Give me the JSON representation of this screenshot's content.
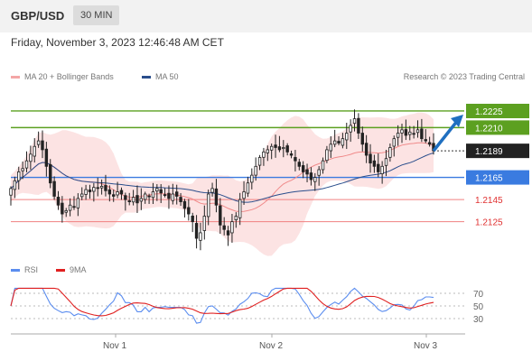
{
  "header": {
    "symbol": "GBP/USD",
    "timeframe": "30 MIN"
  },
  "timestamp": "Friday, November 3, 2023 12:46:48 AM CET",
  "legend_price": [
    {
      "label": "MA 20 + Bollinger Bands",
      "color": "#f4a6a6"
    },
    {
      "label": "MA 50",
      "color": "#2a4e8c"
    }
  ],
  "legend_rsi": [
    {
      "label": "RSI",
      "color": "#5b8def"
    },
    {
      "label": "9MA",
      "color": "#e02020"
    }
  ],
  "copyright": "Research © 2023 Trading Central",
  "colors": {
    "resistance": "#5ca020",
    "support": "#3a7be0",
    "target_line": "#f08080",
    "arrow": "#1f6fc0",
    "up_candle": "#ffffff",
    "down_candle": "#222222"
  },
  "chart_data": [
    {
      "type": "candlestick",
      "title": "GBP/USD",
      "ylim": [
        1.2097,
        1.2247
      ],
      "levels": [
        {
          "price": 1.2225,
          "label": "1.2225",
          "kind": "resistance"
        },
        {
          "price": 1.221,
          "label": "1.2210",
          "kind": "resistance"
        },
        {
          "price": 1.2189,
          "label": "1.2189",
          "kind": "current"
        },
        {
          "price": 1.2165,
          "label": "1.2165",
          "kind": "support"
        },
        {
          "price": 1.2145,
          "label": "1.2145",
          "kind": "target"
        },
        {
          "price": 1.2125,
          "label": "1.2125",
          "kind": "target"
        }
      ],
      "x_ticks": [
        "Nov 1",
        "Nov 2",
        "Nov 3"
      ],
      "close": [
        1.2155,
        1.2162,
        1.217,
        1.2173,
        1.218,
        1.2186,
        1.2193,
        1.2198,
        1.219,
        1.2175,
        1.216,
        1.2148,
        1.214,
        1.2132,
        1.2135,
        1.214,
        1.2138,
        1.2146,
        1.215,
        1.2154,
        1.2152,
        1.2156,
        1.2155,
        1.2157,
        1.2153,
        1.215,
        1.2148,
        1.2152,
        1.215,
        1.2145,
        1.2143,
        1.2147,
        1.2142,
        1.2146,
        1.215,
        1.2148,
        1.2152,
        1.2155,
        1.2151,
        1.2149,
        1.2146,
        1.215,
        1.2148,
        1.2143,
        1.2137,
        1.2132,
        1.2125,
        1.211,
        1.2115,
        1.213,
        1.215,
        1.2155,
        1.214,
        1.2122,
        1.2118,
        1.2113,
        1.2125,
        1.213,
        1.2145,
        1.2152,
        1.216,
        1.2167,
        1.2175,
        1.2183,
        1.2188,
        1.219,
        1.2193,
        1.2192,
        1.219,
        1.2192,
        1.2188,
        1.2185,
        1.218,
        1.2175,
        1.217,
        1.2168,
        1.2163,
        1.2165,
        1.2172,
        1.218,
        1.219,
        1.2195,
        1.2198,
        1.2196,
        1.22,
        1.2205,
        1.2212,
        1.2218,
        1.2205,
        1.2195,
        1.2185,
        1.2178,
        1.2175,
        1.217,
        1.2175,
        1.2182,
        1.2192,
        1.22,
        1.2205,
        1.2208,
        1.2203,
        1.2206,
        1.2204,
        1.2208,
        1.22,
        1.2198,
        1.2195,
        1.2189
      ]
    },
    {
      "type": "line",
      "series": [
        {
          "name": "RSI"
        },
        {
          "name": "9MA"
        }
      ],
      "ylim": [
        20,
        80
      ],
      "y_ticks": [
        70,
        50,
        30
      ],
      "x_ticks": [
        "Nov 1",
        "Nov 2",
        "Nov 3"
      ]
    }
  ]
}
